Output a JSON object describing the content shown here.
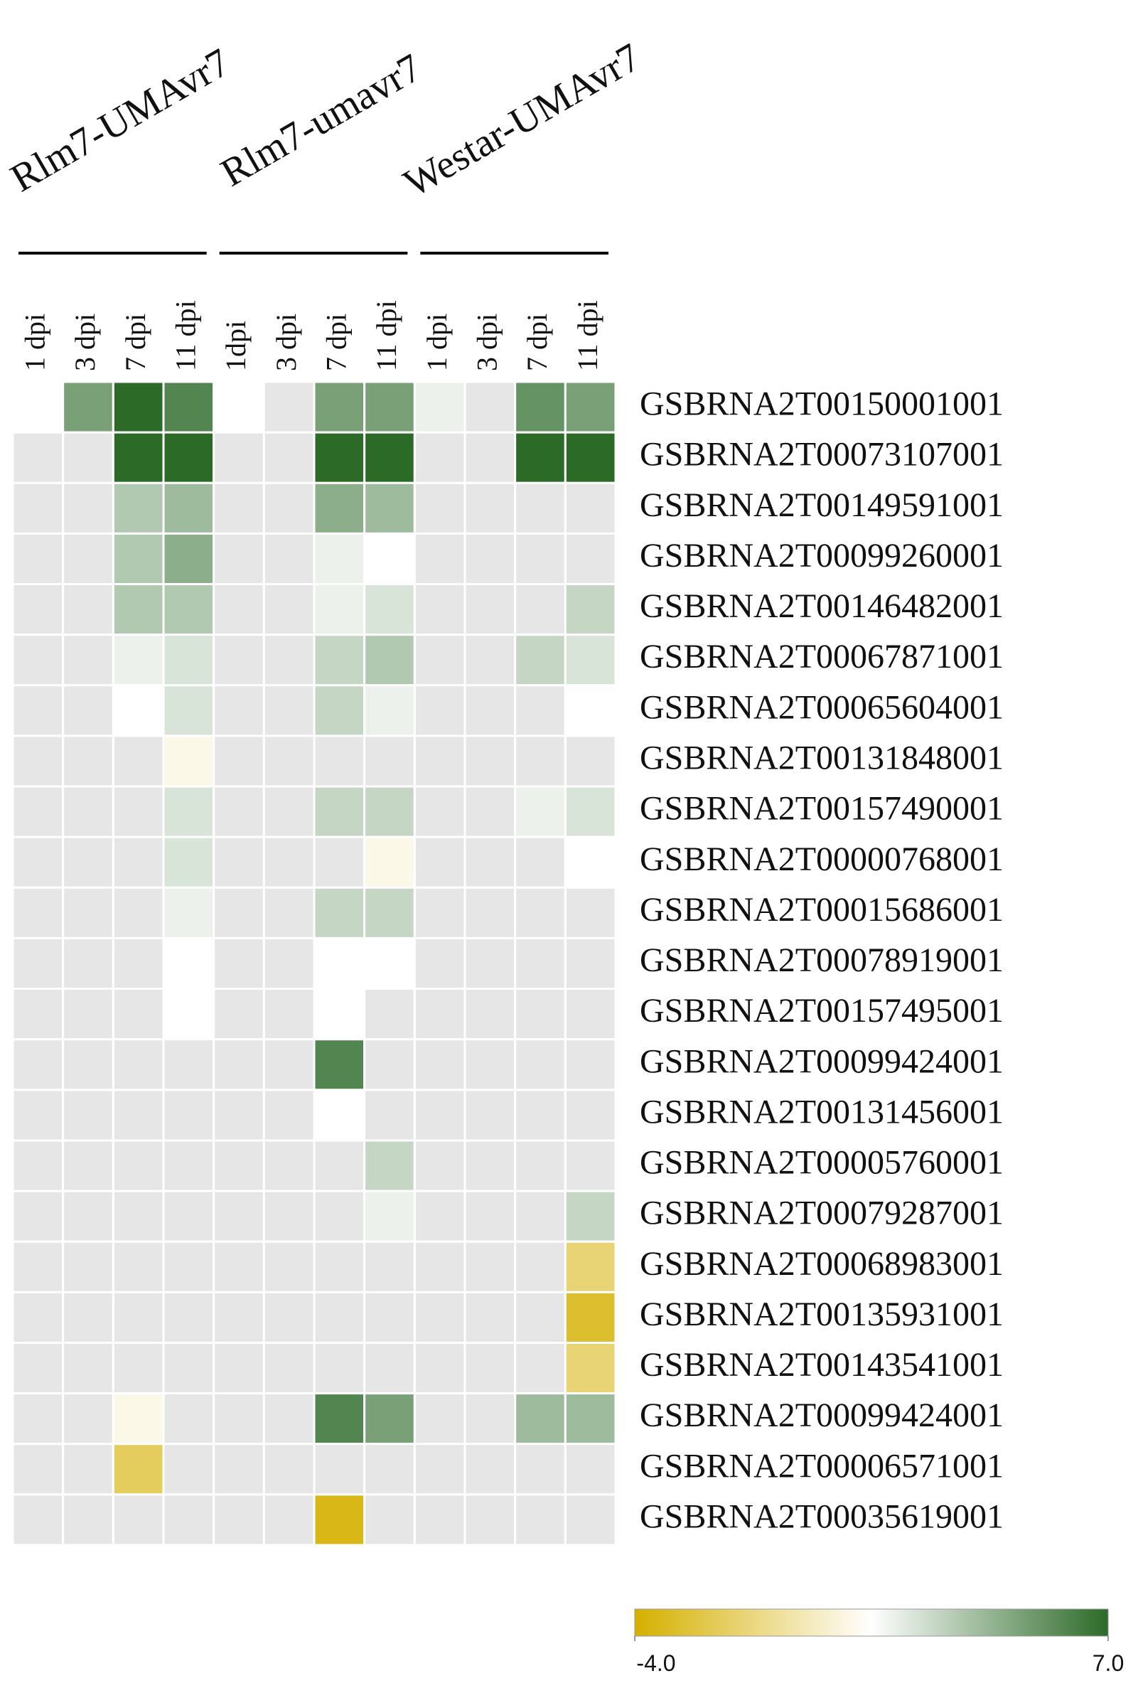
{
  "chart_data": {
    "type": "heatmap",
    "groups": [
      "Rlm7-UMAvr7",
      "Rlm7-umavr7",
      "Westar-UMAvr7"
    ],
    "columns": [
      "1 dpi",
      "3 dpi",
      "7 dpi",
      "11 dpi",
      "1dpi",
      "3 dpi",
      "7 dpi",
      "11 dpi",
      "1 dpi",
      "3 dpi",
      "7 dpi",
      "11 dpi"
    ],
    "rows": [
      "GSBRNA2T00150001001",
      "GSBRNA2T00073107001",
      "GSBRNA2T00149591001",
      "GSBRNA2T00099260001",
      "GSBRNA2T00146482001",
      "GSBRNA2T00067871001",
      "GSBRNA2T00065604001",
      "GSBRNA2T00131848001",
      "GSBRNA2T00157490001",
      "GSBRNA2T00000768001",
      "GSBRNA2T00015686001",
      "GSBRNA2T00078919001",
      "GSBRNA2T00157495001",
      "GSBRNA2T00099424001",
      "GSBRNA2T00131456001",
      "GSBRNA2T00005760001",
      "GSBRNA2T00079287001",
      "GSBRNA2T00068983001",
      "GSBRNA2T00135931001",
      "GSBRNA2T00143541001",
      "GSBRNA2T00099424001",
      "GSBRNA2T00006571001",
      "GSBRNA2T00035619001"
    ],
    "values": [
      [
        1.5,
        5,
        7,
        6,
        1.5,
        null,
        5,
        5,
        2,
        null,
        5.5,
        5
      ],
      [
        null,
        null,
        7,
        7,
        null,
        null,
        7,
        7,
        null,
        null,
        7,
        7
      ],
      [
        null,
        null,
        3.5,
        4,
        null,
        null,
        4.5,
        4,
        null,
        null,
        null,
        null
      ],
      [
        null,
        null,
        3.5,
        4.5,
        null,
        null,
        2,
        1.5,
        null,
        null,
        null,
        null
      ],
      [
        null,
        null,
        3.5,
        3.5,
        null,
        null,
        2,
        2.5,
        null,
        null,
        null,
        3
      ],
      [
        null,
        null,
        2,
        2.5,
        null,
        null,
        3,
        3.5,
        null,
        null,
        3,
        2.5
      ],
      [
        null,
        null,
        1.5,
        2.5,
        null,
        null,
        3,
        2,
        null,
        null,
        null,
        1.5
      ],
      [
        null,
        null,
        null,
        1,
        null,
        null,
        null,
        null,
        null,
        null,
        null,
        null
      ],
      [
        null,
        null,
        null,
        2.5,
        null,
        null,
        3,
        3,
        null,
        null,
        2,
        2.5
      ],
      [
        null,
        null,
        null,
        2.5,
        null,
        null,
        null,
        1,
        null,
        null,
        null,
        1.5
      ],
      [
        null,
        null,
        null,
        2,
        null,
        null,
        3,
        3,
        null,
        null,
        null,
        null
      ],
      [
        null,
        null,
        null,
        1.5,
        null,
        null,
        1.5,
        1.5,
        null,
        null,
        null,
        null
      ],
      [
        null,
        null,
        null,
        1.5,
        null,
        null,
        1.5,
        null,
        null,
        null,
        null,
        null
      ],
      [
        null,
        null,
        null,
        null,
        null,
        null,
        6,
        null,
        null,
        null,
        null,
        null
      ],
      [
        null,
        null,
        null,
        null,
        null,
        null,
        1.5,
        null,
        null,
        null,
        null,
        null
      ],
      [
        null,
        null,
        null,
        null,
        null,
        null,
        null,
        3,
        null,
        null,
        null,
        null
      ],
      [
        null,
        null,
        null,
        null,
        null,
        null,
        null,
        2,
        null,
        null,
        null,
        3
      ],
      [
        null,
        null,
        null,
        null,
        null,
        null,
        null,
        null,
        null,
        null,
        null,
        -1.5
      ],
      [
        null,
        null,
        null,
        null,
        null,
        null,
        null,
        null,
        null,
        null,
        null,
        -3
      ],
      [
        null,
        null,
        null,
        null,
        null,
        null,
        null,
        null,
        null,
        null,
        null,
        -1.5
      ],
      [
        null,
        null,
        1,
        null,
        null,
        null,
        6,
        5,
        null,
        null,
        4,
        4
      ],
      [
        null,
        null,
        -2,
        null,
        null,
        null,
        null,
        null,
        null,
        null,
        null,
        null
      ],
      [
        null,
        null,
        null,
        null,
        null,
        null,
        -3.5,
        null,
        null,
        null,
        null,
        null
      ]
    ],
    "colors": [
      "#d5b000",
      "#ffffff",
      "#2c6a28"
    ],
    "na_color": "#e6e6e6",
    "clim": [
      -4,
      7
    ],
    "cticks": [
      {
        "value": -4,
        "label": "-4.0"
      },
      {
        "value": 7,
        "label": "7.0"
      }
    ]
  }
}
